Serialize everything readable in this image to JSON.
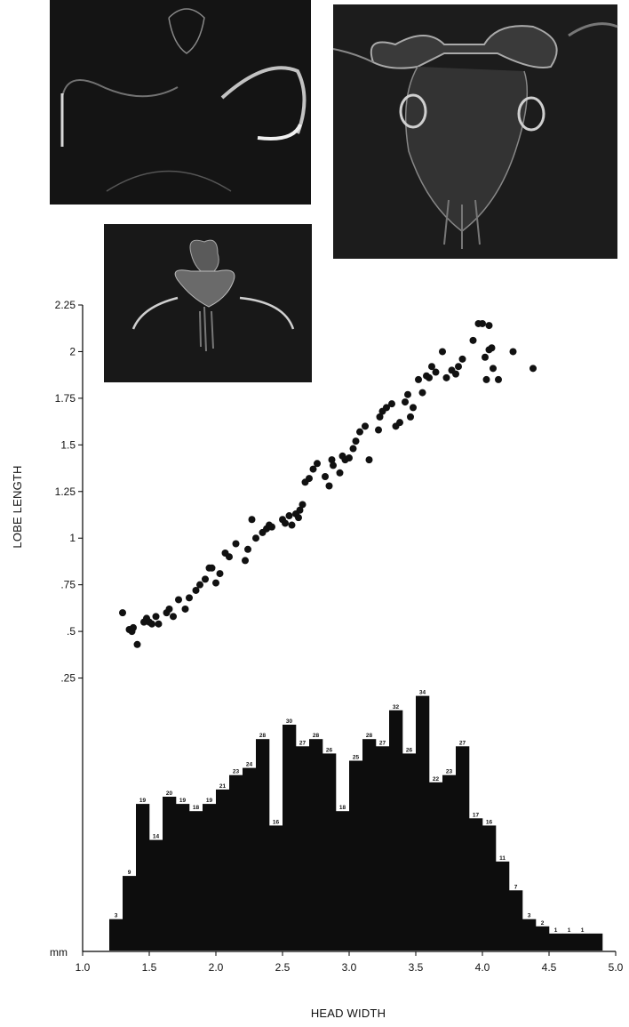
{
  "chart_data": {
    "type": "scatter+histogram",
    "xlabel": "HEAD WIDTH",
    "ylabel": "LOBE LENGTH",
    "unit_label": "mm",
    "xlim": [
      1.0,
      5.0
    ],
    "ylim": [
      0,
      2.25
    ],
    "x_ticks": [
      "1.0",
      "1.5",
      "2.0",
      "2.5",
      "3.0",
      "3.5",
      "4.0",
      "4.5",
      "5.0"
    ],
    "y_ticks": [
      {
        "value": 0.25,
        "label": ".25"
      },
      {
        "value": 0.5,
        "label": ".5"
      },
      {
        "value": 0.75,
        "label": ".75"
      },
      {
        "value": 1.0,
        "label": "1"
      },
      {
        "value": 1.25,
        "label": "1.25"
      },
      {
        "value": 1.5,
        "label": "1.5"
      },
      {
        "value": 1.75,
        "label": "1.75"
      },
      {
        "value": 2.0,
        "label": "2"
      },
      {
        "value": 2.25,
        "label": "2.25"
      }
    ],
    "scatter": {
      "x": [
        1.3,
        1.35,
        1.37,
        1.38,
        1.41,
        1.46,
        1.48,
        1.5,
        1.52,
        1.55,
        1.57,
        1.63,
        1.65,
        1.68,
        1.72,
        1.77,
        1.8,
        1.85,
        1.88,
        1.92,
        1.95,
        1.97,
        2.0,
        2.03,
        2.07,
        2.1,
        2.15,
        2.22,
        2.24,
        2.27,
        2.3,
        2.35,
        2.38,
        2.4,
        2.42,
        2.5,
        2.52,
        2.55,
        2.57,
        2.6,
        2.62,
        2.63,
        2.65,
        2.67,
        2.7,
        2.73,
        2.76,
        2.82,
        2.85,
        2.87,
        2.88,
        2.93,
        2.95,
        2.97,
        3.0,
        3.03,
        3.05,
        3.08,
        3.12,
        3.15,
        3.22,
        3.23,
        3.25,
        3.28,
        3.32,
        3.35,
        3.38,
        3.42,
        3.44,
        3.46,
        3.48,
        3.52,
        3.55,
        3.58,
        3.6,
        3.62,
        3.65,
        3.7,
        3.73,
        3.77,
        3.8,
        3.82,
        3.85,
        3.93,
        3.97,
        4.0,
        4.02,
        4.03,
        4.05,
        4.05,
        4.07,
        4.08,
        4.12,
        4.23,
        4.38
      ],
      "y": [
        0.6,
        0.51,
        0.5,
        0.52,
        0.43,
        0.55,
        0.57,
        0.55,
        0.54,
        0.58,
        0.54,
        0.6,
        0.62,
        0.58,
        0.67,
        0.62,
        0.68,
        0.72,
        0.75,
        0.78,
        0.84,
        0.84,
        0.76,
        0.81,
        0.92,
        0.9,
        0.97,
        0.88,
        0.94,
        1.1,
        1.0,
        1.03,
        1.05,
        1.07,
        1.06,
        1.1,
        1.08,
        1.12,
        1.07,
        1.13,
        1.11,
        1.15,
        1.18,
        1.3,
        1.32,
        1.37,
        1.4,
        1.33,
        1.28,
        1.42,
        1.39,
        1.35,
        1.44,
        1.42,
        1.43,
        1.48,
        1.52,
        1.57,
        1.6,
        1.42,
        1.58,
        1.65,
        1.68,
        1.7,
        1.72,
        1.6,
        1.62,
        1.73,
        1.77,
        1.65,
        1.7,
        1.85,
        1.78,
        1.87,
        1.86,
        1.92,
        1.89,
        2.0,
        1.86,
        1.9,
        1.88,
        1.92,
        1.96,
        2.06,
        2.15,
        2.15,
        1.97,
        1.85,
        2.01,
        2.14,
        2.02,
        1.91,
        1.85,
        2.0,
        1.91
      ]
    },
    "histogram": {
      "bin_width": 0.1,
      "bin_starts": [
        1.2,
        1.3,
        1.4,
        1.5,
        1.6,
        1.7,
        1.8,
        1.9,
        2.0,
        2.1,
        2.2,
        2.3,
        2.4,
        2.5,
        2.6,
        2.7,
        2.8,
        2.9,
        3.0,
        3.1,
        3.2,
        3.3,
        3.4,
        3.5,
        3.6,
        3.7,
        3.8,
        3.9,
        4.0,
        4.1,
        4.2,
        4.3,
        4.4,
        4.5,
        4.6,
        4.7,
        4.8
      ],
      "counts": [
        3,
        9,
        19,
        14,
        20,
        19,
        18,
        19,
        21,
        23,
        24,
        28,
        16,
        30,
        27,
        28,
        26,
        18,
        25,
        28,
        27,
        32,
        26,
        34,
        22,
        23,
        27,
        17,
        16,
        11,
        7,
        3,
        2,
        1,
        1,
        1,
        1
      ],
      "labels": [
        "3",
        "9",
        "19",
        "14",
        "20",
        "19",
        "18",
        "19",
        "21",
        "23",
        "24",
        "28",
        "16",
        "30",
        "27",
        "28",
        "26",
        "18",
        "25",
        "28",
        "27",
        "32",
        "26",
        "34",
        "22",
        "23",
        "27",
        "17",
        "16",
        "11",
        "7",
        "3",
        "2",
        "1",
        "1",
        "1",
        ""
      ]
    }
  },
  "photos": [
    {
      "name": "photo-full-larva",
      "background": "#151515"
    },
    {
      "name": "photo-head-closeup",
      "background": "#1c1c1c"
    },
    {
      "name": "photo-small-larva",
      "background": "#181818"
    }
  ]
}
